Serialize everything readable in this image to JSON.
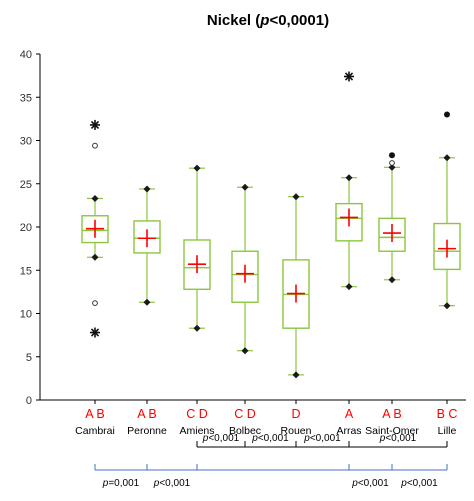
{
  "chart_data": {
    "type": "box",
    "title": "Nickel (p<0,0001)",
    "title_parts": [
      "Nickel (",
      "p",
      "<0,0001)"
    ],
    "ylim": [
      0,
      40
    ],
    "y_ticks": [
      "0",
      "5",
      "10",
      "15",
      "20",
      "25",
      "30",
      "35",
      "40"
    ],
    "categories": [
      "Cambrai",
      "Peronne",
      "Amiens",
      "Bolbec",
      "Rouen",
      "Arras",
      "Saint-Omer",
      "Lille"
    ],
    "groups": [
      "A B",
      "A B",
      "C D",
      "C D",
      "D",
      "A",
      "A B",
      "B C"
    ],
    "boxes": [
      {
        "whisker_low": 16.5,
        "q1": 18.2,
        "median": 19.6,
        "q3": 21.3,
        "whisker_high": 23.3,
        "mean": 19.8,
        "outliers": [
          11.2,
          29.4
        ],
        "extremes": [
          7.8,
          31.8
        ]
      },
      {
        "whisker_low": 11.3,
        "q1": 17.0,
        "median": 18.7,
        "q3": 20.7,
        "whisker_high": 24.4,
        "mean": 18.7,
        "outliers": [],
        "extremes": []
      },
      {
        "whisker_low": 8.3,
        "q1": 12.8,
        "median": 15.3,
        "q3": 18.5,
        "whisker_high": 26.8,
        "mean": 15.7,
        "outliers": [],
        "extremes": []
      },
      {
        "whisker_low": 5.7,
        "q1": 11.3,
        "median": 14.5,
        "q3": 17.2,
        "whisker_high": 24.6,
        "mean": 14.6,
        "outliers": [],
        "extremes": []
      },
      {
        "whisker_low": 2.9,
        "q1": 8.3,
        "median": 12.2,
        "q3": 16.2,
        "whisker_high": 23.5,
        "mean": 12.3,
        "outliers": [],
        "extremes": []
      },
      {
        "whisker_low": 13.1,
        "q1": 18.4,
        "median": 21.0,
        "q3": 22.7,
        "whisker_high": 25.7,
        "mean": 21.1,
        "outliers": [],
        "extremes": [
          37.4
        ]
      },
      {
        "whisker_low": 13.9,
        "q1": 17.2,
        "median": 18.8,
        "q3": 21.0,
        "whisker_high": 26.9,
        "mean": 19.3,
        "outliers": [
          27.4
        ],
        "extremes": [
          28.3
        ]
      },
      {
        "whisker_low": 10.9,
        "q1": 15.1,
        "median": 17.2,
        "q3": 20.4,
        "whisker_high": 28.0,
        "mean": 17.5,
        "outliers": [],
        "extremes": [
          33.0
        ]
      }
    ],
    "comparisons_black": [
      {
        "text": "p<0,001",
        "from": 2,
        "to": 3
      },
      {
        "text": "p<0,001",
        "from": 3,
        "to": 4
      },
      {
        "text": "p<0,001",
        "from": 4,
        "to": 5
      },
      {
        "text": "p<0,001",
        "from": 5,
        "to": 7
      }
    ],
    "comparisons_blue": [
      {
        "text": "p=0,001",
        "from": 0,
        "to": 1
      },
      {
        "text": "p<0,001",
        "from": 1,
        "to": 2
      },
      {
        "text": "p<0,001",
        "from": 5,
        "to": 6
      },
      {
        "text": "p<0,001",
        "from": 6,
        "to": 7
      }
    ],
    "colors": {
      "box": "#8cc63f",
      "mean": "#ff0000",
      "group_label": "#ff0000",
      "whisker_end": "#1a1a1a",
      "bracket_black": "#000000",
      "bracket_blue": "#4472c4",
      "axis": "#000000",
      "text": "#000000"
    },
    "grid": false,
    "legend": "none"
  }
}
